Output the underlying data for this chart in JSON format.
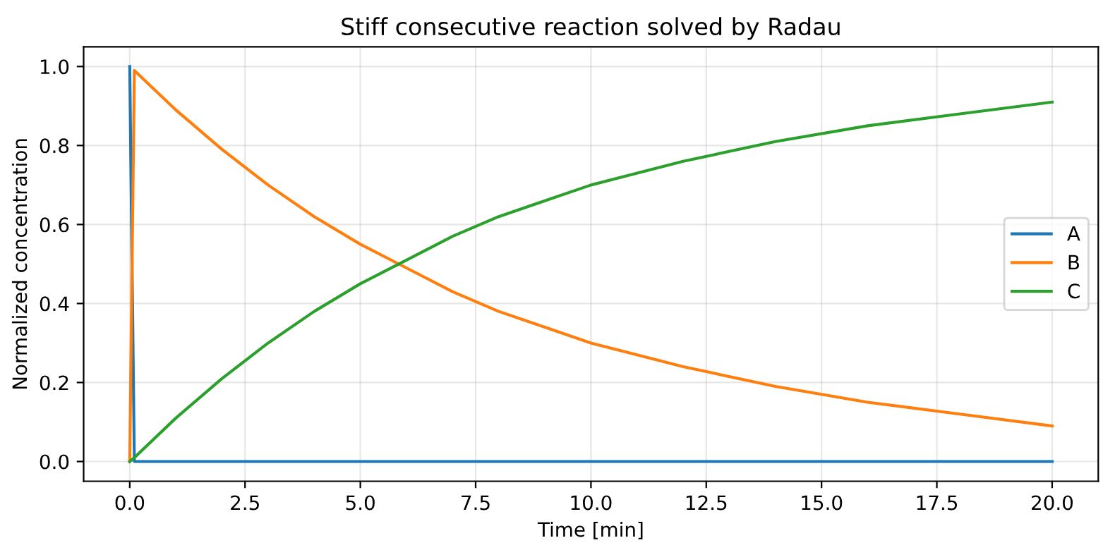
{
  "chart_data": {
    "type": "line",
    "title": "Stiff consecutive reaction solved by Radau",
    "xlabel": "Time [min]",
    "ylabel": "Normalized concentration",
    "series": [
      {
        "name": "A",
        "color": "#1f77b4",
        "x": [
          0,
          0.1,
          20
        ],
        "values": [
          1.0,
          0.0,
          0.0
        ]
      },
      {
        "name": "B",
        "color": "#ff7f0e",
        "x": [
          0,
          0.1,
          1,
          2,
          3,
          4,
          5,
          6,
          7,
          8,
          9,
          10,
          12,
          14,
          16,
          18,
          20
        ],
        "values": [
          0.0,
          0.99,
          0.89,
          0.79,
          0.7,
          0.62,
          0.55,
          0.49,
          0.43,
          0.38,
          0.34,
          0.3,
          0.24,
          0.19,
          0.15,
          0.12,
          0.09
        ]
      },
      {
        "name": "C",
        "color": "#2ca02c",
        "x": [
          0,
          0.1,
          1,
          2,
          3,
          4,
          5,
          6,
          7,
          8,
          9,
          10,
          12,
          14,
          16,
          18,
          20
        ],
        "values": [
          0.0,
          0.01,
          0.11,
          0.21,
          0.3,
          0.38,
          0.45,
          0.51,
          0.57,
          0.62,
          0.66,
          0.7,
          0.76,
          0.81,
          0.85,
          0.88,
          0.91
        ]
      }
    ],
    "xlim": [
      -1,
      21
    ],
    "xticks": [
      {
        "value": 0,
        "label": "0.0"
      },
      {
        "value": 2.5,
        "label": "2.5"
      },
      {
        "value": 5,
        "label": "5.0"
      },
      {
        "value": 7.5,
        "label": "7.5"
      },
      {
        "value": 10,
        "label": "10.0"
      },
      {
        "value": 12.5,
        "label": "12.5"
      },
      {
        "value": 15,
        "label": "15.0"
      },
      {
        "value": 17.5,
        "label": "17.5"
      },
      {
        "value": 20,
        "label": "20.0"
      }
    ],
    "ylim": [
      -0.05,
      1.05
    ],
    "yticks": [
      {
        "value": 0,
        "label": "0.0"
      },
      {
        "value": 0.2,
        "label": "0.2"
      },
      {
        "value": 0.4,
        "label": "0.4"
      },
      {
        "value": 0.6,
        "label": "0.6"
      },
      {
        "value": 0.8,
        "label": "0.8"
      },
      {
        "value": 1.0,
        "label": "1.0"
      }
    ],
    "grid": true,
    "legend": "center right",
    "marker": "none",
    "line_style": "solid"
  }
}
